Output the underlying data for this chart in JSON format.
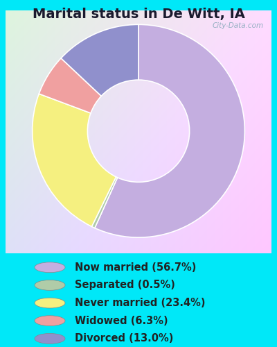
{
  "title": "Marital status in De Witt, IA",
  "categories": [
    "Now married",
    "Separated",
    "Never married",
    "Widowed",
    "Divorced"
  ],
  "values": [
    56.7,
    0.5,
    23.4,
    6.3,
    13.0
  ],
  "colors": [
    "#c4aee0",
    "#b0cca8",
    "#f5f080",
    "#f0a0a0",
    "#9090cc"
  ],
  "legend_labels": [
    "Now married (56.7%)",
    "Separated (0.5%)",
    "Never married (23.4%)",
    "Widowed (6.3%)",
    "Divorced (13.0%)"
  ],
  "bg_color": "#00e8f8",
  "watermark": "City-Data.com",
  "title_fontsize": 14,
  "legend_fontsize": 10.5,
  "donut_width": 0.52
}
